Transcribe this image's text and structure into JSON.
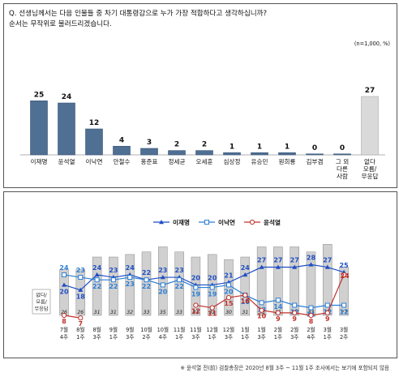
{
  "question": {
    "line1": "Q. 선생님께서는 다음 인물들 중 차기 대통령감으로 누가 가장 적합하다고 생각하십니까?",
    "line2": "순서는 무작위로 불러드리겠습니다."
  },
  "unit_note": "(n=1,000, %)",
  "footnote": "※ 윤석열 전(前) 검찰총장은 2020년 8월 3주 ~ 11월 1주 조사에서는 보기에 포함되지 않음",
  "colors": {
    "bar_primary": "#4f6f93",
    "bar_other": "#d9d9d9",
    "lee_jaemyung": "#1f4fc4",
    "lee_nakyon": "#2a7ed6",
    "yoon_sukyeol": "#c0312b",
    "gray_bar": "#d0d0d0"
  },
  "chart_data": [
    {
      "type": "bar",
      "categories": [
        "이재명",
        "윤석열",
        "이낙연",
        "안철수",
        "홍준표",
        "정세균",
        "오세훈",
        "심상정",
        "유승민",
        "원희룡",
        "김부겸",
        "그 외 다른 사람",
        "없다 모름/ 무응답"
      ],
      "category_lines": [
        [
          "이재명"
        ],
        [
          "윤석열"
        ],
        [
          "이낙연"
        ],
        [
          "안철수"
        ],
        [
          "홍준표"
        ],
        [
          "정세균"
        ],
        [
          "오세훈"
        ],
        [
          "심상정"
        ],
        [
          "유승민"
        ],
        [
          "원희룡"
        ],
        [
          "김부겸"
        ],
        [
          "그 외",
          "다른",
          "사람"
        ],
        [
          "없다",
          "모름/",
          "무응답"
        ]
      ],
      "values": [
        25,
        24,
        12,
        4,
        3,
        2,
        2,
        1,
        1,
        1,
        0,
        0,
        27
      ],
      "value_labels": [
        "25",
        "24",
        "12",
        "4",
        "3",
        "2",
        "2",
        "1",
        "1",
        "1",
        "0",
        "0",
        "27"
      ],
      "ylim": [
        0,
        30
      ]
    },
    {
      "type": "line",
      "x": [
        "7월 4주",
        "8월 1주",
        "8월 3주",
        "9월 1주",
        "9월 3주",
        "10월 2주",
        "10월 4주",
        "11월 1주",
        "11월 3주",
        "12월 1주",
        "12월 3주",
        "1월 1주",
        "1월 3주",
        "2월 1주",
        "2월 3주",
        "2월 4주",
        "3월 1주",
        "3월 2주"
      ],
      "x_lines": [
        [
          "7월",
          "4주"
        ],
        [
          "8월",
          "1주"
        ],
        [
          "8월",
          "3주"
        ],
        [
          "9월",
          "1주"
        ],
        [
          "9월",
          "3주"
        ],
        [
          "10월",
          "2주"
        ],
        [
          "10월",
          "4주"
        ],
        [
          "11월",
          "1주"
        ],
        [
          "11월",
          "3주"
        ],
        [
          "12월",
          "1주"
        ],
        [
          "12월",
          "3주"
        ],
        [
          "1월",
          "1주"
        ],
        [
          "1월",
          "3주"
        ],
        [
          "2월",
          "1주"
        ],
        [
          "2월",
          "3주"
        ],
        [
          "2월",
          "4주"
        ],
        [
          "3월",
          "1주"
        ],
        [
          "3월",
          "2주"
        ]
      ],
      "series": [
        {
          "name": "이재명",
          "values": [
            20,
            18,
            24,
            23,
            24,
            22,
            23,
            23,
            20,
            20,
            21,
            24,
            27,
            27,
            27,
            28,
            27,
            25
          ],
          "color": "#1f4fc4",
          "marker": "triangle"
        },
        {
          "name": "이낙연",
          "values": [
            24,
            23,
            22,
            22,
            23,
            22,
            20,
            22,
            19,
            19,
            20,
            16,
            13,
            14,
            12,
            11,
            12,
            12
          ],
          "color": "#2a7ed6",
          "marker": "square"
        },
        {
          "name": "윤석열",
          "values": [
            8,
            7,
            null,
            null,
            null,
            null,
            null,
            null,
            12,
            11,
            15,
            16,
            10,
            9,
            9,
            8,
            9,
            24
          ],
          "color": "#c0312b",
          "marker": "circle"
        }
      ],
      "bars": {
        "name": "없다/모름/무응답",
        "label_lines": [
          "없다/",
          "모름/",
          "무응답"
        ],
        "values": [
          26,
          26,
          31,
          31,
          32,
          33,
          35,
          33,
          31,
          32,
          30,
          31,
          35,
          35,
          35,
          33,
          36,
          27
        ]
      },
      "ylim": [
        0,
        40
      ],
      "legend_position": "top-center"
    }
  ]
}
